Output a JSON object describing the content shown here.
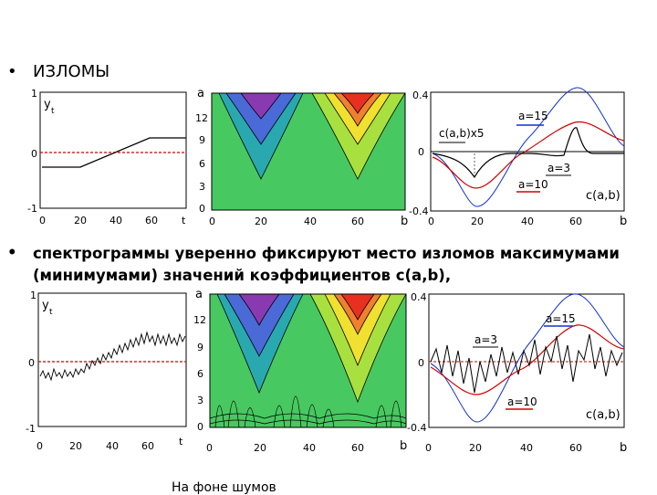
{
  "bullets": {
    "marker": "•",
    "first": "ИЗЛОМЫ",
    "second": "спектрограммы уверенно фиксируют место изломов максимумами (минимумами) значений коэффициентов c(a,b),"
  },
  "caption": "На фоне шумов",
  "left_plots": {
    "y_label": "y",
    "y_sub": "t",
    "x_label": "t",
    "x_ticks": [
      "0",
      "20",
      "40",
      "60"
    ],
    "y_ticks": [
      "1",
      "0",
      "-1"
    ]
  },
  "middle_plots": {
    "y_label": "a",
    "x_label": "b",
    "x_ticks": [
      "0",
      "20",
      "40",
      "60"
    ],
    "y_ticks": [
      "12",
      "9",
      "6",
      "3",
      "0"
    ]
  },
  "right_plots": {
    "x_label": "b",
    "x_ticks": [
      "0",
      "20",
      "40",
      "60"
    ],
    "y_ticks": [
      "0.4",
      "0",
      "-0.4"
    ],
    "coef_label": "c(a,b)",
    "top_labels": {
      "scale": "c(a,b)x5",
      "a15": "a=15",
      "a3": "a=3",
      "a10": "a=10"
    },
    "bottom_labels": {
      "a15": "a=15",
      "a3": "a=3",
      "a10": "a=10"
    }
  },
  "colors": {
    "red": "#d40000",
    "blue": "#1030d0",
    "black": "#000000",
    "purple": "#8a3ab0",
    "blue_fill": "#4a6ad8",
    "teal": "#2aa8b0",
    "green": "#48c860",
    "yellow": "#f0e030",
    "orange": "#f08030",
    "redfill": "#e83020"
  }
}
